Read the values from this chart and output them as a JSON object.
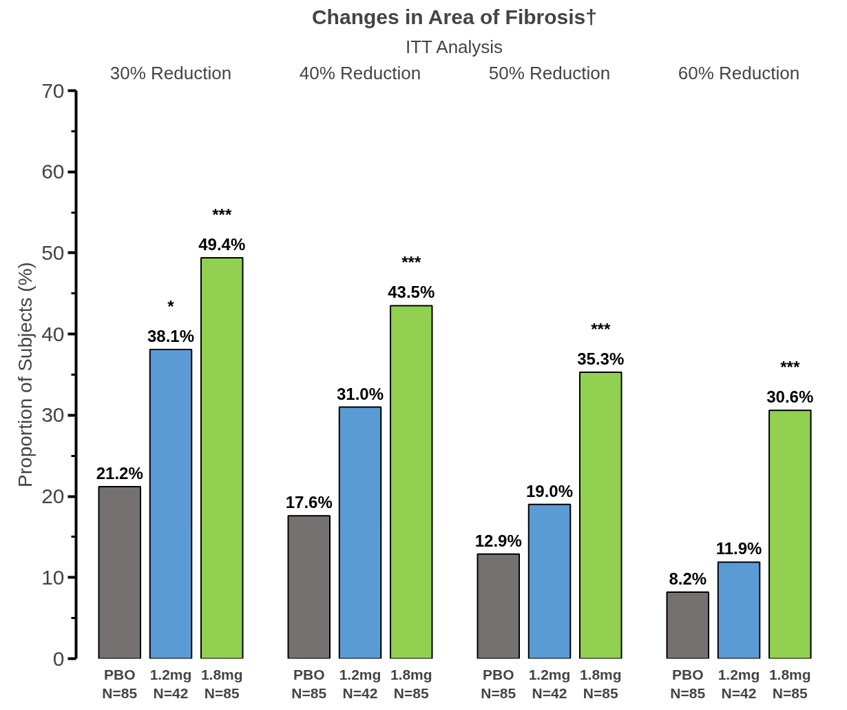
{
  "chart_data": {
    "type": "bar",
    "title": "Changes in Area of Fibrosis†",
    "subtitle": "ITT Analysis",
    "ylabel": "Proportion of Subjects (%)",
    "categories": [
      "30% Reduction",
      "40% Reduction",
      "50% Reduction",
      "60% Reduction"
    ],
    "series": [
      {
        "name": "PBO N=85",
        "color": "#767171",
        "values": [
          21.2,
          17.6,
          12.9,
          8.2
        ],
        "value_labels": [
          "21.2%",
          "17.6%",
          "12.9%",
          "8.2%"
        ]
      },
      {
        "name": "1.2mg N=42",
        "color": "#5b9bd5",
        "values": [
          38.1,
          31.0,
          19.0,
          11.9
        ],
        "value_labels": [
          "*\n38.1%",
          "31.0%",
          "19.0%",
          "11.9%"
        ]
      },
      {
        "name": "1.8mg N=85",
        "color": "#92d050",
        "values": [
          49.4,
          43.5,
          35.3,
          30.6
        ],
        "value_labels": [
          "***\n49.4%",
          "***\n43.5%",
          "***\n35.3%",
          "***\n30.6%"
        ]
      }
    ],
    "ylim": [
      0,
      70
    ],
    "yticks": [
      0,
      {
        "value": 5,
        "label": null
      },
      10,
      {
        "value": 15,
        "label": null
      },
      20,
      {
        "value": 25,
        "label": null
      },
      30,
      {
        "value": 35,
        "label": null
      },
      40,
      {
        "value": 45,
        "label": null
      },
      50,
      {
        "value": 55,
        "label": null
      },
      60,
      {
        "value": 65,
        "label": null
      },
      70
    ],
    "grid": false
  }
}
